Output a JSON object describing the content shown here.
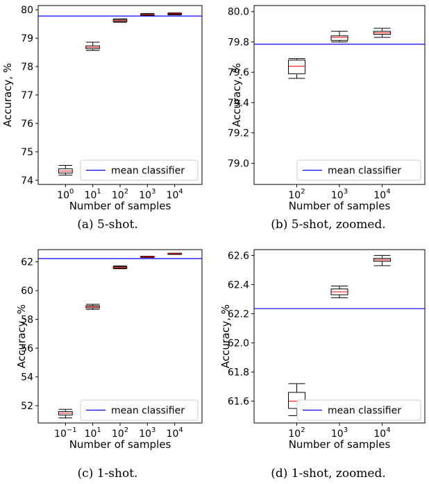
{
  "chart_data": [
    {
      "type": "box",
      "caption": "(a) 5-shot.",
      "xlabel": "Number of samples",
      "ylabel": "Accuracy, %",
      "categories": [
        {
          "base": "10",
          "exp": "0"
        },
        {
          "base": "10",
          "exp": "1"
        },
        {
          "base": "10",
          "exp": "2"
        },
        {
          "base": "10",
          "exp": "3"
        },
        {
          "base": "10",
          "exp": "4"
        }
      ],
      "ylim": [
        73.85,
        80.15
      ],
      "yticks": [
        "74",
        "75",
        "76",
        "77",
        "78",
        "79",
        "80"
      ],
      "boxes": [
        {
          "whislo": 74.18,
          "q1": 74.25,
          "med": 74.32,
          "q3": 74.4,
          "whishi": 74.52
        },
        {
          "whislo": 78.57,
          "q1": 78.63,
          "med": 78.68,
          "q3": 78.73,
          "whishi": 78.86
        },
        {
          "whislo": 79.56,
          "q1": 79.59,
          "med": 79.62,
          "q3": 79.66,
          "whishi": 79.68
        },
        {
          "whislo": 79.8,
          "q1": 79.81,
          "med": 79.83,
          "q3": 79.84,
          "whishi": 79.87
        },
        {
          "whislo": 79.82,
          "q1": 79.84,
          "med": 79.86,
          "q3": 79.87,
          "whishi": 79.89
        }
      ],
      "reference_line": {
        "label": "mean classifier",
        "value": 79.78,
        "color": "#0000ff"
      },
      "legend_position": "lower-right",
      "box_color": "#000000",
      "median_color": "#ff0000"
    },
    {
      "type": "box",
      "caption": "(b) 5-shot, zoomed.",
      "xlabel": "Number of samples",
      "ylabel": "Accuracy, %",
      "categories": [
        {
          "base": "10",
          "exp": "2"
        },
        {
          "base": "10",
          "exp": "3"
        },
        {
          "base": "10",
          "exp": "4"
        }
      ],
      "ylim": [
        78.86,
        80.04
      ],
      "yticks": [
        "79.0",
        "79.2",
        "79.4",
        "79.6",
        "79.8",
        "80.0"
      ],
      "boxes": [
        {
          "whislo": 79.56,
          "q1": 79.59,
          "med": 79.64,
          "q3": 79.68,
          "whishi": 79.69
        },
        {
          "whislo": 79.8,
          "q1": 79.81,
          "med": 79.83,
          "q3": 79.84,
          "whishi": 79.87
        },
        {
          "whislo": 79.83,
          "q1": 79.85,
          "med": 79.86,
          "q3": 79.87,
          "whishi": 79.89
        }
      ],
      "reference_line": {
        "label": "mean classifier",
        "value": 79.785,
        "color": "#0000ff"
      },
      "legend_position": "lower-right",
      "box_color": "#000000",
      "median_color": "#ff0000"
    },
    {
      "type": "box",
      "caption": "(c) 1-shot.",
      "xlabel": "Number of samples",
      "ylabel": "Accuracy, %",
      "categories": [
        {
          "base": "10",
          "exp": "−1"
        },
        {
          "base": "10",
          "exp": "1"
        },
        {
          "base": "10",
          "exp": "2"
        },
        {
          "base": "10",
          "exp": "3"
        },
        {
          "base": "10",
          "exp": "4"
        }
      ],
      "ylim": [
        50.8,
        62.85
      ],
      "yticks": [
        "52",
        "54",
        "56",
        "58",
        "60",
        "62"
      ],
      "boxes": [
        {
          "whislo": 51.15,
          "q1": 51.35,
          "med": 51.48,
          "q3": 51.6,
          "whishi": 51.75
        },
        {
          "whislo": 58.7,
          "q1": 58.8,
          "med": 58.88,
          "q3": 58.95,
          "whishi": 59.05
        },
        {
          "whislo": 61.52,
          "q1": 61.56,
          "med": 61.6,
          "q3": 61.66,
          "whishi": 61.72
        },
        {
          "whislo": 62.3,
          "q1": 62.33,
          "med": 62.35,
          "q3": 62.37,
          "whishi": 62.39
        },
        {
          "whislo": 62.52,
          "q1": 62.55,
          "med": 62.57,
          "q3": 62.58,
          "whishi": 62.6
        }
      ],
      "reference_line": {
        "label": "mean classifier",
        "value": 62.23,
        "color": "#0000ff"
      },
      "legend_position": "lower-right",
      "box_color": "#000000",
      "median_color": "#ff0000"
    },
    {
      "type": "box",
      "caption": "(d) 1-shot, zoomed.",
      "xlabel": "Number of samples",
      "ylabel": "Accuracy, %",
      "categories": [
        {
          "base": "10",
          "exp": "2"
        },
        {
          "base": "10",
          "exp": "3"
        },
        {
          "base": "10",
          "exp": "4"
        }
      ],
      "ylim": [
        61.45,
        62.64
      ],
      "yticks": [
        "61.6",
        "61.8",
        "62.0",
        "62.2",
        "62.4",
        "62.6"
      ],
      "boxes": [
        {
          "whislo": 61.5,
          "q1": 61.55,
          "med": 61.6,
          "q3": 61.66,
          "whishi": 61.72
        },
        {
          "whislo": 62.31,
          "q1": 62.33,
          "med": 62.35,
          "q3": 62.37,
          "whishi": 62.39
        },
        {
          "whislo": 62.53,
          "q1": 62.56,
          "med": 62.57,
          "q3": 62.58,
          "whishi": 62.6
        }
      ],
      "reference_line": {
        "label": "mean classifier",
        "value": 62.235,
        "color": "#0000ff"
      },
      "legend_position": "lower-right",
      "box_color": "#000000",
      "median_color": "#ff0000"
    }
  ]
}
